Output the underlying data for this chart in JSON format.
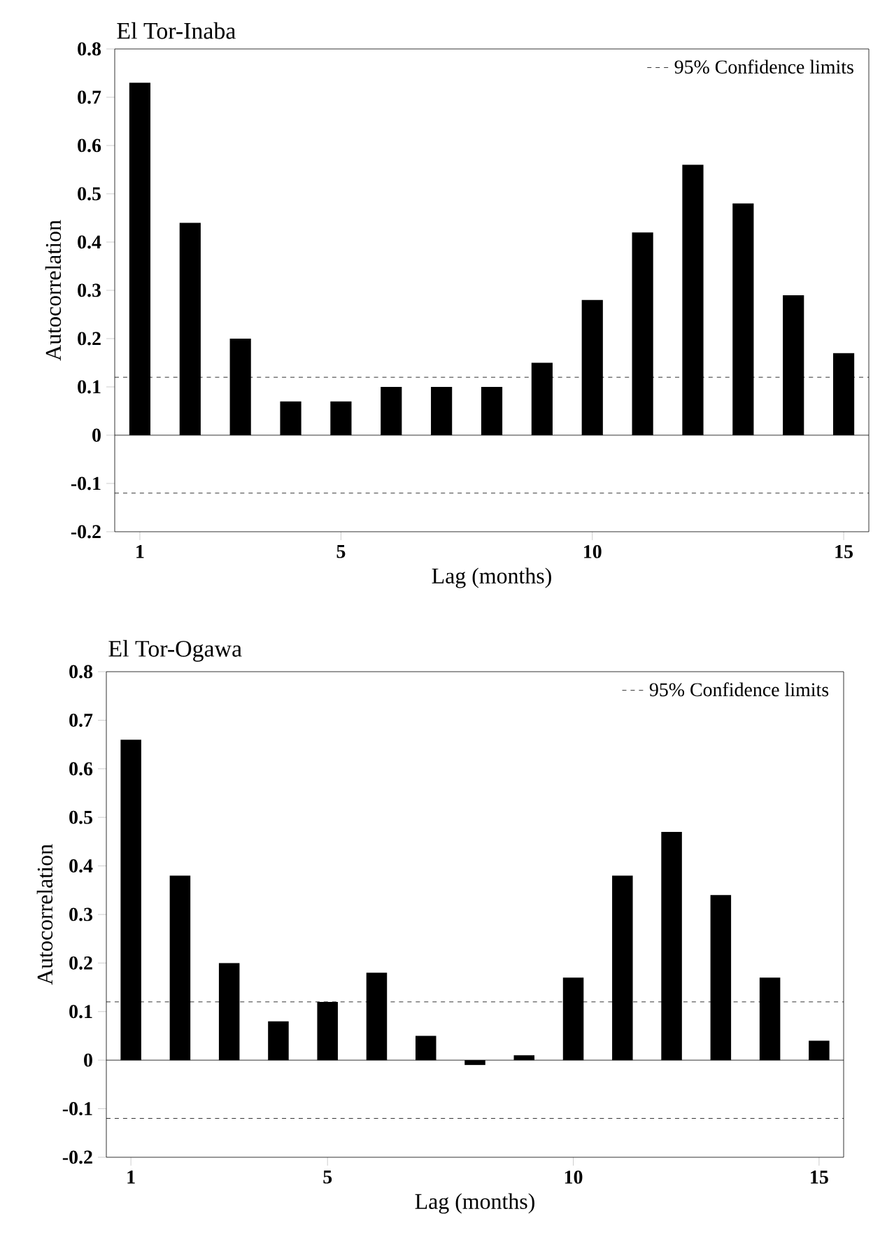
{
  "chart_data": [
    {
      "type": "bar",
      "title": "El Tor-Inaba",
      "xlabel": "Lag (months)",
      "ylabel": "Autocorrelation",
      "x": [
        1,
        2,
        3,
        4,
        5,
        6,
        7,
        8,
        9,
        10,
        11,
        12,
        13,
        14,
        15
      ],
      "values": [
        0.73,
        0.44,
        0.2,
        0.07,
        0.07,
        0.1,
        0.1,
        0.1,
        0.15,
        0.28,
        0.42,
        0.56,
        0.48,
        0.29,
        0.17
      ],
      "color": "#000000",
      "xlim": [
        0.5,
        15.5
      ],
      "xticks": [
        1,
        5,
        10,
        15
      ],
      "ylim": [
        -0.2,
        0.8
      ],
      "yticks": [
        -0.2,
        -0.1,
        0,
        0.1,
        0.2,
        0.3,
        0.4,
        0.5,
        0.6,
        0.7,
        0.8
      ],
      "ref_lines": [
        {
          "axis": "y",
          "value": 0.12,
          "label": "95% Confidence limits",
          "color": "#000000",
          "line_style": "dashed"
        },
        {
          "axis": "y",
          "value": -0.12,
          "color": "#000000",
          "line_style": "dashed"
        },
        {
          "axis": "y",
          "value": 0,
          "color": "#000000",
          "line_style": "solid"
        }
      ],
      "legend": "top right"
    },
    {
      "type": "bar",
      "title": "El Tor-Ogawa",
      "xlabel": "Lag (months)",
      "ylabel": "Autocorrelation",
      "x": [
        1,
        2,
        3,
        4,
        5,
        6,
        7,
        8,
        9,
        10,
        11,
        12,
        13,
        14,
        15
      ],
      "values": [
        0.66,
        0.38,
        0.2,
        0.08,
        0.12,
        0.18,
        0.05,
        -0.01,
        0.01,
        0.17,
        0.38,
        0.47,
        0.34,
        0.17,
        0.04
      ],
      "color": "#000000",
      "xlim": [
        0.5,
        15.5
      ],
      "xticks": [
        1,
        5,
        10,
        15
      ],
      "ylim": [
        -0.2,
        0.8
      ],
      "yticks": [
        -0.2,
        -0.1,
        0,
        0.1,
        0.2,
        0.3,
        0.4,
        0.5,
        0.6,
        0.7,
        0.8
      ],
      "ref_lines": [
        {
          "axis": "y",
          "value": 0.12,
          "label": "95% Confidence limits",
          "color": "#000000",
          "line_style": "dashed"
        },
        {
          "axis": "y",
          "value": -0.12,
          "color": "#000000",
          "line_style": "dashed"
        },
        {
          "axis": "y",
          "value": 0,
          "color": "#000000",
          "line_style": "solid"
        }
      ],
      "legend": "top right"
    }
  ]
}
